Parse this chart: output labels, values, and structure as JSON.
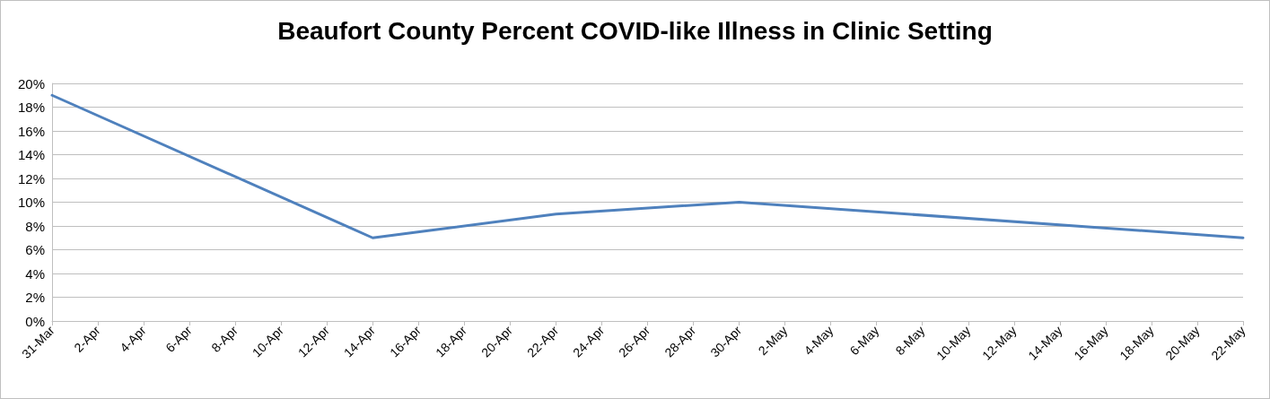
{
  "chart_data": {
    "type": "line",
    "title": "Beaufort County Percent COVID-like Illness in Clinic Setting",
    "x": [
      "--03-31",
      "--04-14",
      "--04-22",
      "--04-30",
      "--05-22"
    ],
    "series": [
      {
        "color": "#4f81bd",
        "values": [
          19,
          7,
          9,
          10,
          7
        ]
      }
    ],
    "xlim": [
      "--03-31",
      "--05-22"
    ],
    "xticks": [
      {
        "value": "--03-31",
        "label": "31-Mar"
      },
      {
        "value": "--04-02",
        "label": "2-Apr"
      },
      {
        "value": "--04-04",
        "label": "4-Apr"
      },
      {
        "value": "--04-06",
        "label": "6-Apr"
      },
      {
        "value": "--04-08",
        "label": "8-Apr"
      },
      {
        "value": "--04-10",
        "label": "10-Apr"
      },
      {
        "value": "--04-12",
        "label": "12-Apr"
      },
      {
        "value": "--04-14",
        "label": "14-Apr"
      },
      {
        "value": "--04-16",
        "label": "16-Apr"
      },
      {
        "value": "--04-18",
        "label": "18-Apr"
      },
      {
        "value": "--04-20",
        "label": "20-Apr"
      },
      {
        "value": "--04-22",
        "label": "22-Apr"
      },
      {
        "value": "--04-24",
        "label": "24-Apr"
      },
      {
        "value": "--04-26",
        "label": "26-Apr"
      },
      {
        "value": "--04-28",
        "label": "28-Apr"
      },
      {
        "value": "--04-30",
        "label": "30-Apr"
      },
      {
        "value": "--05-02",
        "label": "2-May"
      },
      {
        "value": "--05-04",
        "label": "4-May"
      },
      {
        "value": "--05-06",
        "label": "6-May"
      },
      {
        "value": "--05-08",
        "label": "8-May"
      },
      {
        "value": "--05-10",
        "label": "10-May"
      },
      {
        "value": "--05-12",
        "label": "12-May"
      },
      {
        "value": "--05-14",
        "label": "14-May"
      },
      {
        "value": "--05-16",
        "label": "16-May"
      },
      {
        "value": "--05-18",
        "label": "18-May"
      },
      {
        "value": "--05-20",
        "label": "20-May"
      },
      {
        "value": "--05-22",
        "label": "22-May"
      }
    ],
    "ylim": [
      0,
      20
    ],
    "yticks": [
      {
        "value": 0,
        "label": "0%"
      },
      {
        "value": 2,
        "label": "2%"
      },
      {
        "value": 4,
        "label": "4%"
      },
      {
        "value": 6,
        "label": "6%"
      },
      {
        "value": 8,
        "label": "8%"
      },
      {
        "value": 10,
        "label": "10%"
      },
      {
        "value": 12,
        "label": "12%"
      },
      {
        "value": 14,
        "label": "14%"
      },
      {
        "value": 16,
        "label": "16%"
      },
      {
        "value": 18,
        "label": "18%"
      },
      {
        "value": 20,
        "label": "20%"
      }
    ],
    "grid": "y",
    "marker": "none",
    "line_style": "solid"
  }
}
